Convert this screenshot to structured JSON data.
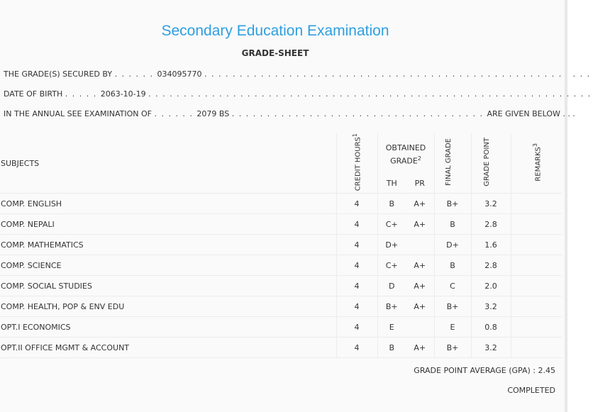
{
  "header": {
    "title": "Secondary Education Examination",
    "subtitle": "GRADE-SHEET"
  },
  "info": {
    "secured_by_label": "THE GRADE(S) SECURED BY",
    "secured_by_value": "034095770",
    "dob_label": "DATE OF BIRTH",
    "dob_value": "2063-10-19",
    "exam_label": "IN THE ANNUAL SEE EXAMINATION OF",
    "exam_value": "2079 BS",
    "exam_suffix": "ARE GIVEN BELOW . . ."
  },
  "table": {
    "headers": {
      "subjects": "SUBJECTS",
      "credit_hours": "CREDIT HOURS",
      "credit_sup": "1",
      "obtained_grade": "OBTAINED GRADE",
      "obtained_sup": "2",
      "th": "TH",
      "pr": "PR",
      "final_grade": "FINAL GRADE",
      "grade_point": "GRADE POINT",
      "remarks": "REMARKS",
      "remarks_sup": "3"
    },
    "rows": [
      {
        "subject": "COMP. ENGLISH",
        "credit": "4",
        "th": "B",
        "pr": "A+",
        "final": "B+",
        "gp": "3.2",
        "remarks": ""
      },
      {
        "subject": "COMP. NEPALI",
        "credit": "4",
        "th": "C+",
        "pr": "A+",
        "final": "B",
        "gp": "2.8",
        "remarks": ""
      },
      {
        "subject": "COMP. MATHEMATICS",
        "credit": "4",
        "th": "D+",
        "pr": "",
        "final": "D+",
        "gp": "1.6",
        "remarks": ""
      },
      {
        "subject": "COMP. SCIENCE",
        "credit": "4",
        "th": "C+",
        "pr": "A+",
        "final": "B",
        "gp": "2.8",
        "remarks": ""
      },
      {
        "subject": "COMP. SOCIAL STUDIES",
        "credit": "4",
        "th": "D",
        "pr": "A+",
        "final": "C",
        "gp": "2.0",
        "remarks": ""
      },
      {
        "subject": "COMP. HEALTH, POP & ENV EDU",
        "credit": "4",
        "th": "B+",
        "pr": "A+",
        "final": "B+",
        "gp": "3.2",
        "remarks": ""
      },
      {
        "subject": "OPT.I ECONOMICS",
        "credit": "4",
        "th": "E",
        "pr": "",
        "final": "E",
        "gp": "0.8",
        "remarks": ""
      },
      {
        "subject": "OPT.II OFFICE MGMT & ACCOUNT",
        "credit": "4",
        "th": "B",
        "pr": "A+",
        "final": "B+",
        "gp": "3.2",
        "remarks": ""
      }
    ]
  },
  "summary": {
    "gpa_text": "GRADE POINT AVERAGE (GPA) : 2.45",
    "status": "COMPLETED"
  }
}
